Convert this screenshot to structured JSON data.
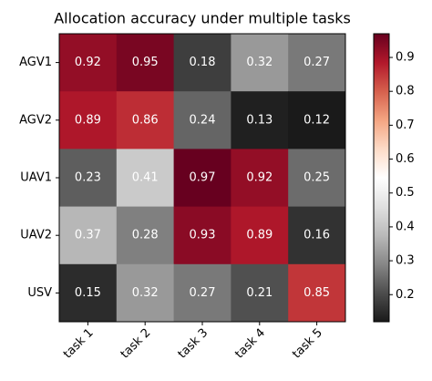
{
  "chart_data": {
    "type": "heatmap",
    "title": "Allocation accuracy under multiple tasks",
    "x_categories": [
      "task 1",
      "task 2",
      "task 3",
      "task 4",
      "task 5"
    ],
    "y_categories": [
      "AGV1",
      "AGV2",
      "UAV1",
      "UAV2",
      "USV"
    ],
    "values": [
      [
        0.92,
        0.95,
        0.18,
        0.32,
        0.27
      ],
      [
        0.89,
        0.86,
        0.24,
        0.13,
        0.12
      ],
      [
        0.23,
        0.41,
        0.97,
        0.92,
        0.25
      ],
      [
        0.37,
        0.28,
        0.93,
        0.89,
        0.16
      ],
      [
        0.15,
        0.32,
        0.27,
        0.21,
        0.85
      ]
    ],
    "clim": [
      0.12,
      0.97
    ],
    "colorbar_ticks": [
      0.2,
      0.3,
      0.4,
      0.5,
      0.6,
      0.7,
      0.8,
      0.9
    ],
    "colors": [
      "#1a1a1a",
      "#4d4d4d",
      "#878787",
      "#bababa",
      "#e0e0e0",
      "#ffffff",
      "#fddbc7",
      "#f4a582",
      "#d6604d",
      "#b2182b",
      "#67001f"
    ]
  }
}
